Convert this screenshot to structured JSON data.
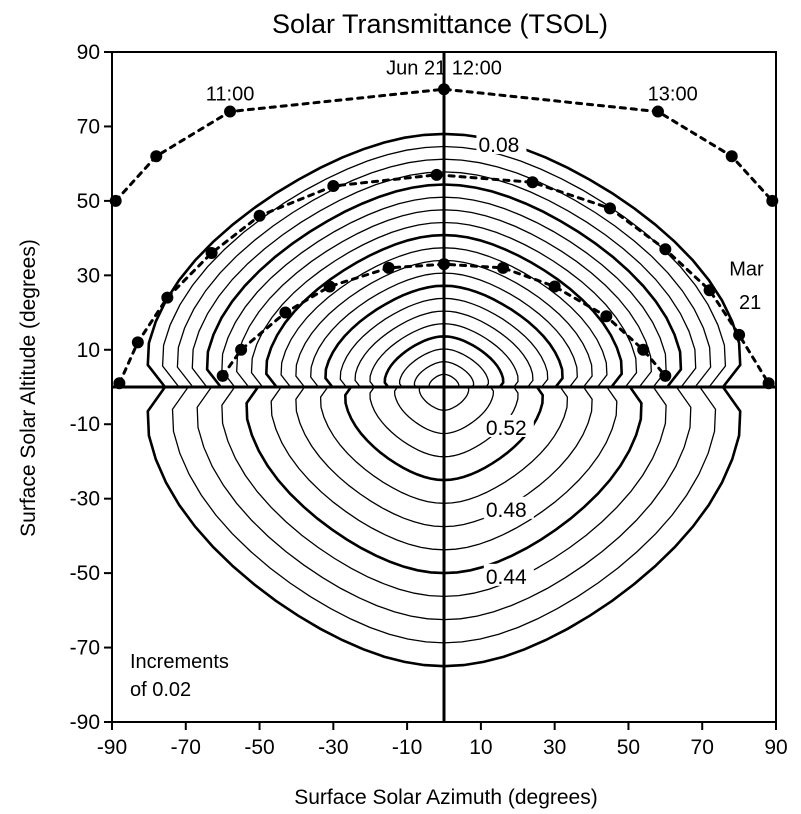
{
  "chart_data": {
    "type": "contour",
    "title": "Solar Transmittance (TSOL)",
    "xlabel": "Surface Solar Azimuth (degrees)",
    "ylabel": "Surface Solar Altitude (degrees)",
    "xlim": [
      -90,
      90
    ],
    "ylim": [
      -90,
      90
    ],
    "x_ticks": [
      -90,
      -70,
      -50,
      -30,
      -10,
      10,
      30,
      50,
      70,
      90
    ],
    "y_ticks": [
      -90,
      -70,
      -50,
      -30,
      -10,
      10,
      30,
      50,
      70,
      90
    ],
    "contour_increment_text": [
      "Increments",
      "of 0.02"
    ],
    "contour_increment": 0.02,
    "contour_labels": [
      {
        "text": "0.08",
        "x": 5,
        "y": 65
      },
      {
        "text": "0.52",
        "x": 7,
        "y": -11
      },
      {
        "text": "0.48",
        "x": 7,
        "y": -33
      },
      {
        "text": "0.44",
        "x": 7,
        "y": -51
      }
    ],
    "sun_paths": [
      {
        "name": "Jun 21",
        "points": [
          [
            -89,
            50
          ],
          [
            -78,
            62
          ],
          [
            -58,
            74
          ],
          [
            0,
            80
          ],
          [
            58,
            74
          ],
          [
            78,
            62
          ],
          [
            89,
            50
          ]
        ]
      },
      {
        "name": "Mar 21",
        "points": [
          [
            -88,
            1
          ],
          [
            -83,
            12
          ],
          [
            -75,
            24
          ],
          [
            -63,
            36
          ],
          [
            -50,
            46
          ],
          [
            -30,
            54
          ],
          [
            -2,
            57
          ],
          [
            24,
            55
          ],
          [
            45,
            48
          ],
          [
            60,
            37
          ],
          [
            72,
            26
          ],
          [
            80,
            14
          ],
          [
            88,
            1
          ]
        ]
      },
      {
        "points": [
          [
            -60,
            3
          ],
          [
            -55,
            10
          ],
          [
            -43,
            20
          ],
          [
            -31,
            27
          ],
          [
            -15,
            32
          ],
          [
            0,
            33
          ],
          [
            16,
            32
          ],
          [
            30,
            27
          ],
          [
            44,
            19
          ],
          [
            54,
            10
          ],
          [
            60,
            3
          ]
        ]
      }
    ],
    "annotations": [
      {
        "text": "Jun 21 12:00",
        "x": 0,
        "y": 84
      },
      {
        "text": "11:00",
        "x": -58,
        "y": 77
      },
      {
        "text": "13:00",
        "x": 62,
        "y": 77
      },
      {
        "text": "Mar",
        "x": 82,
        "y": 30
      },
      {
        "text": "21",
        "x": 83,
        "y": 21
      }
    ],
    "grid": false,
    "cross_lines": {
      "x": 0,
      "y": 0
    }
  }
}
